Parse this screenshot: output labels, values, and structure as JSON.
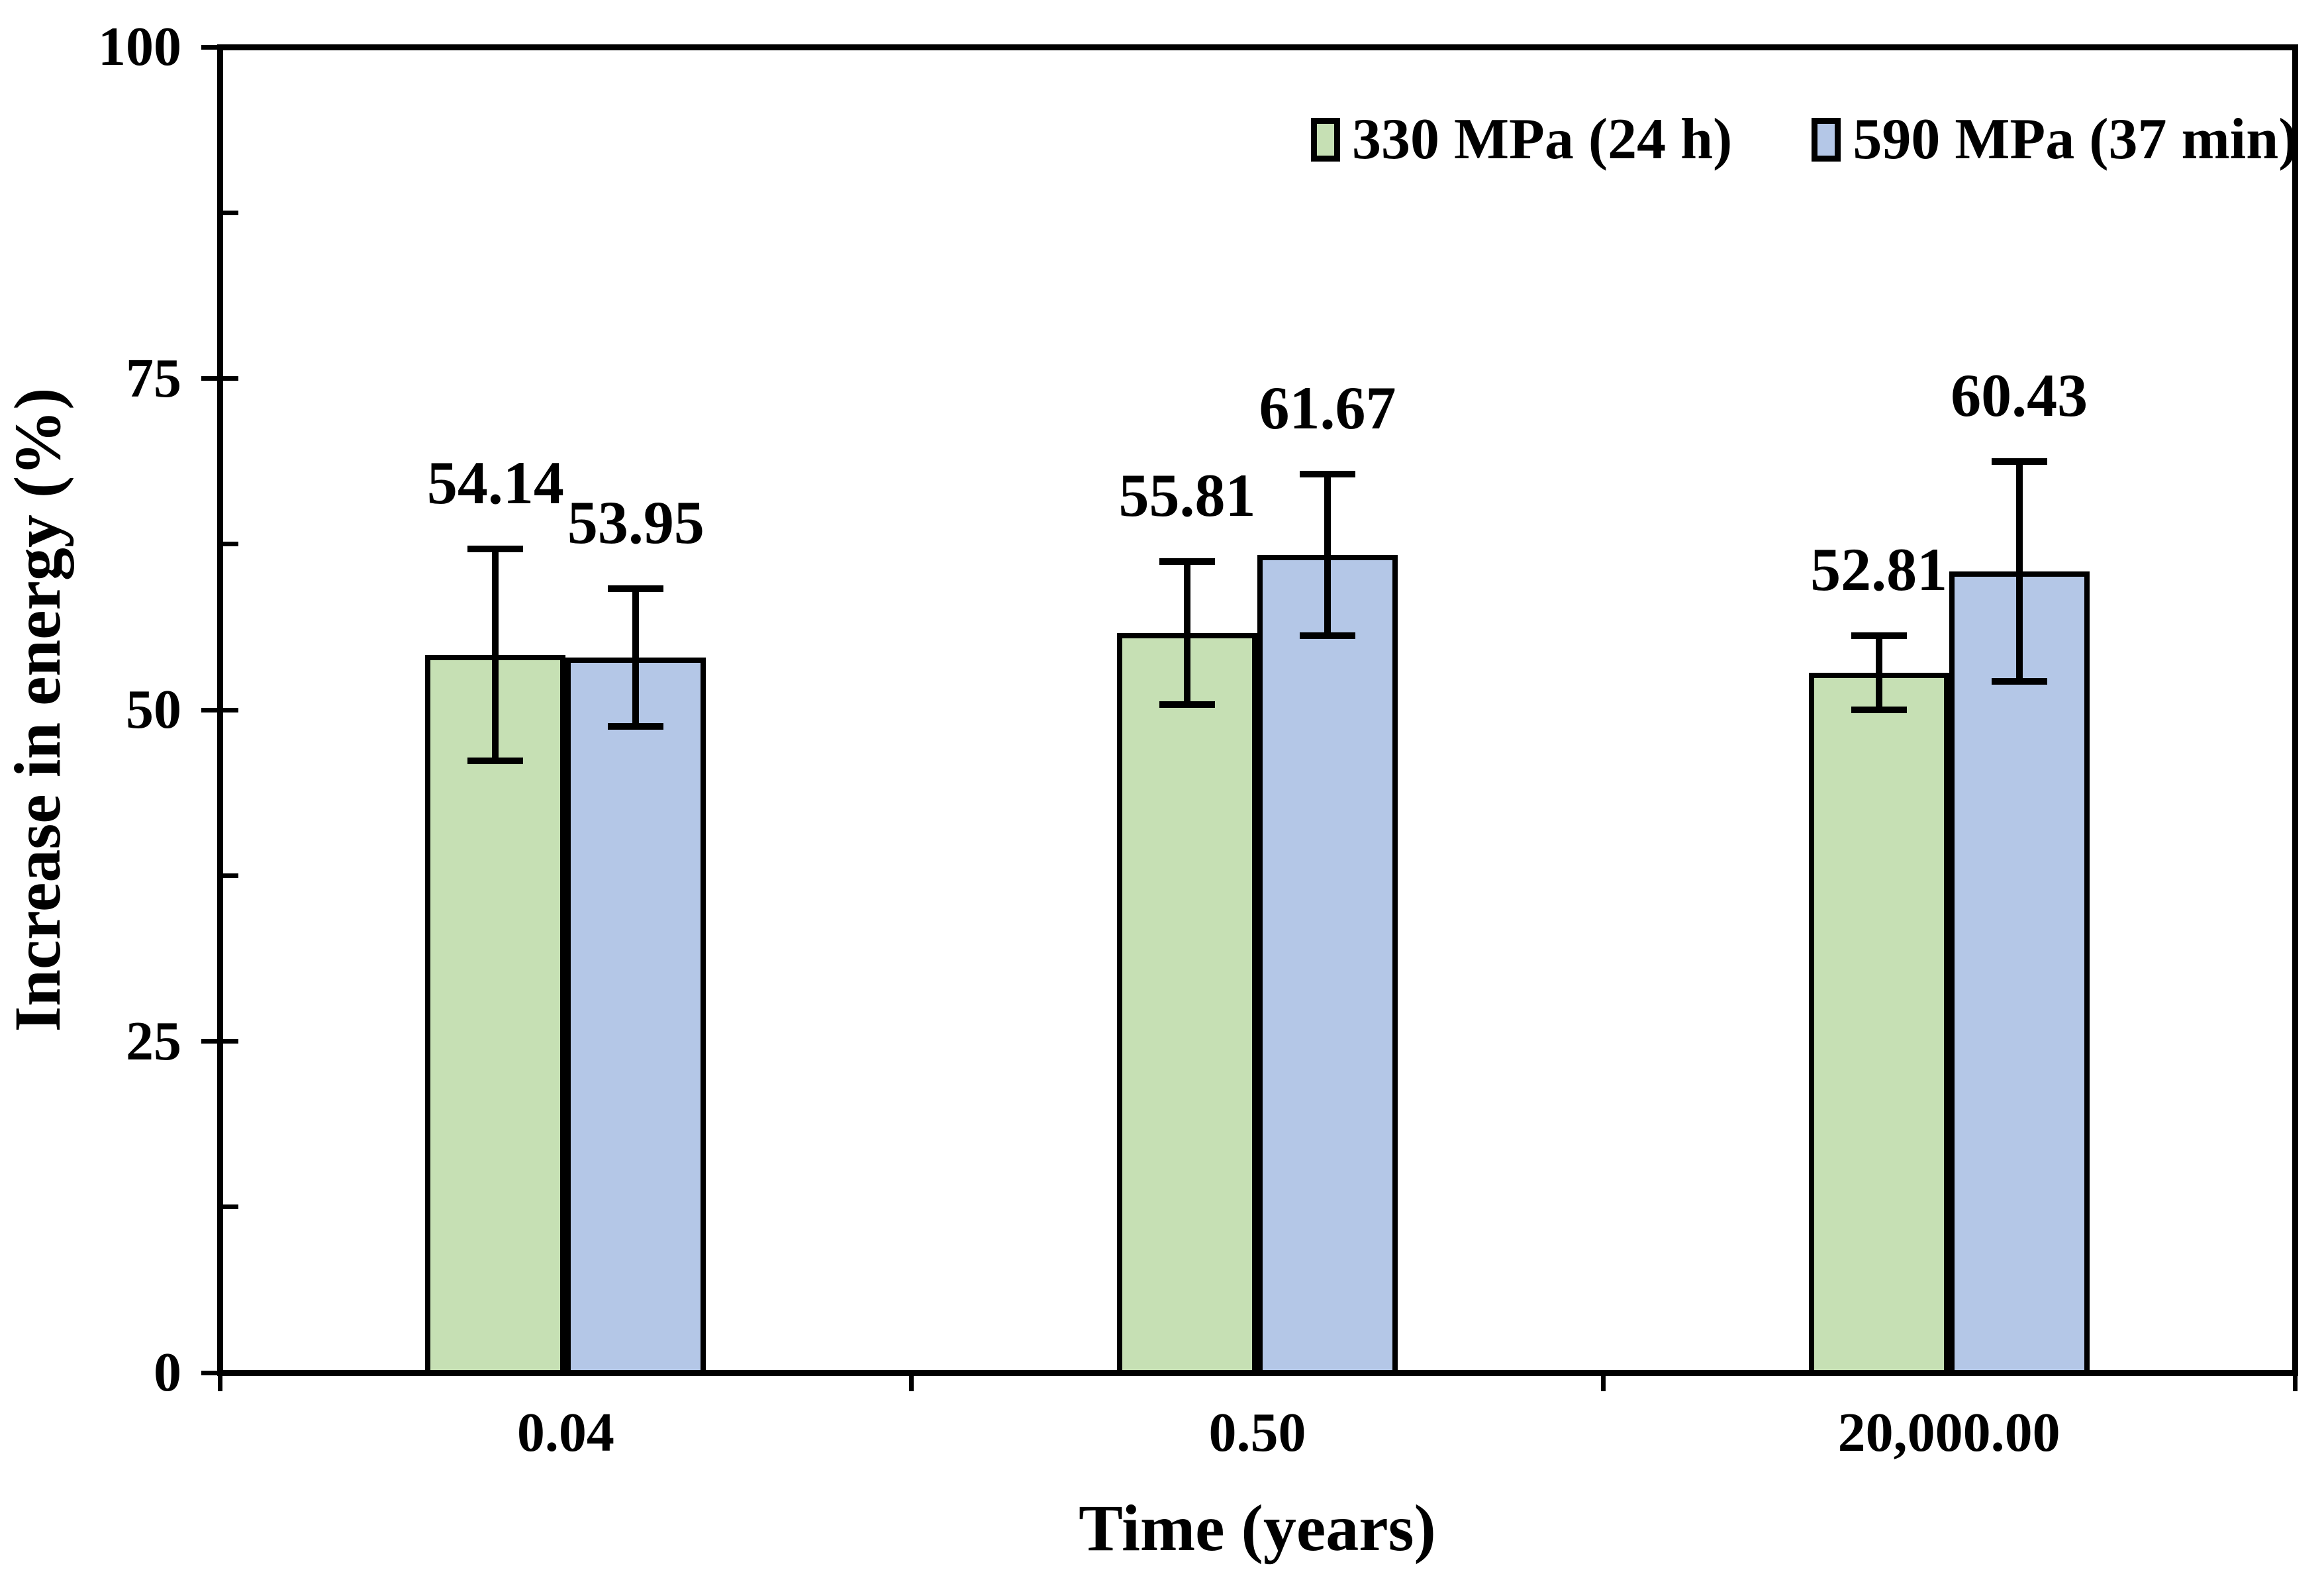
{
  "chart_data": {
    "type": "bar",
    "title": "",
    "xlabel": "Time (years)",
    "ylabel": "Increase in energy (%)",
    "categories": [
      "0.04",
      "0.50",
      "20,000.00"
    ],
    "series": [
      {
        "name": "330 MPa (24 h)",
        "color": "#C6E0B4",
        "values": [
          54.14,
          55.81,
          52.81
        ],
        "value_labels": [
          "54.14",
          "55.81",
          "52.81"
        ],
        "errors": [
          8.0,
          5.4,
          2.8
        ]
      },
      {
        "name": "590 MPa (37 min)",
        "color": "#B4C7E7",
        "values": [
          53.95,
          61.67,
          60.43
        ],
        "value_labels": [
          "53.95",
          "61.67",
          "60.43"
        ],
        "errors": [
          5.2,
          6.1,
          8.3
        ]
      }
    ],
    "ylim": [
      0,
      100
    ],
    "yticks": [
      0,
      25,
      50,
      75,
      100
    ],
    "ytick_labels": [
      "0",
      "25",
      "50",
      "75",
      "100"
    ],
    "minor_yticks": [
      12.5,
      37.5,
      62.5,
      87.5
    ],
    "legend_position": "top-right",
    "grid": false,
    "error_bars": true
  },
  "colors": {
    "background": "#FFFFFF",
    "axis": "#000000",
    "bar_outline": "#000000",
    "series_green": "#C6E0B4",
    "series_blue": "#B4C7E7"
  }
}
